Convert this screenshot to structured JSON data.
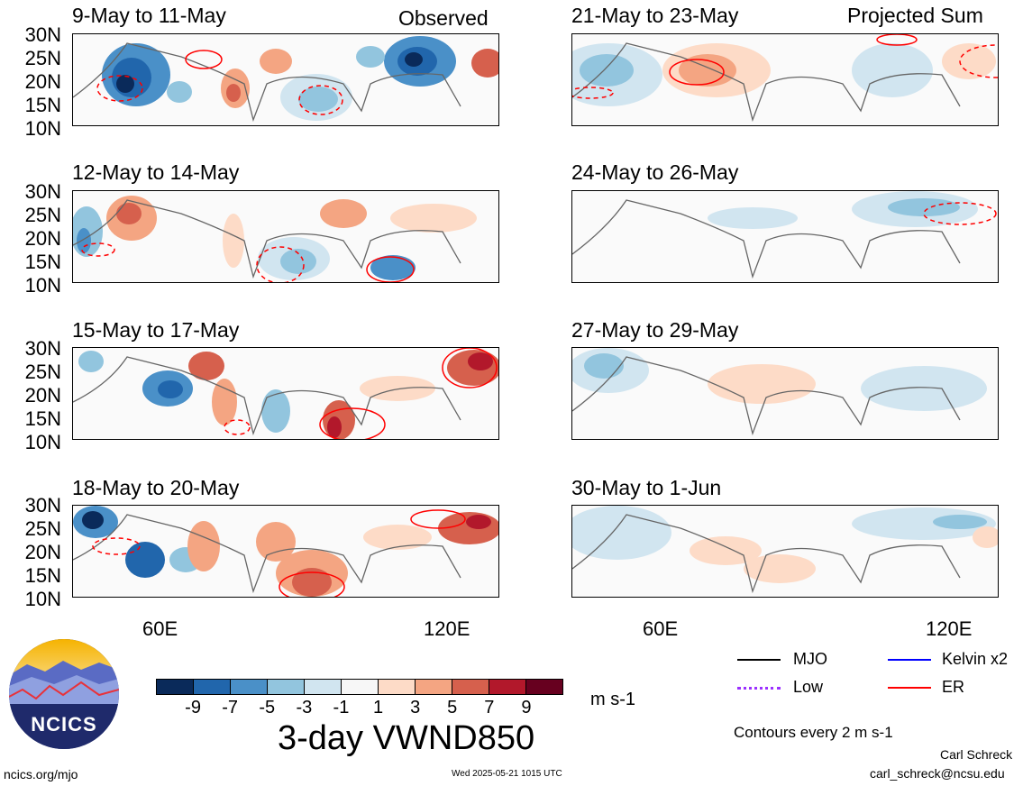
{
  "left_tag": "Observed",
  "right_tag": "Projected Sum",
  "lat_labels": [
    "30N",
    "25N",
    "20N",
    "15N",
    "10N"
  ],
  "lon_labels": [
    "60E",
    "120E"
  ],
  "left_panels": [
    {
      "title": "9-May to 11-May"
    },
    {
      "title": "12-May to 14-May"
    },
    {
      "title": "15-May to 17-May"
    },
    {
      "title": "18-May to 20-May"
    }
  ],
  "right_panels": [
    {
      "title": "21-May to 23-May"
    },
    {
      "title": "24-May to 26-May"
    },
    {
      "title": "27-May to 29-May"
    },
    {
      "title": "30-May to 1-Jun"
    }
  ],
  "colorbar": {
    "colors": [
      "#0a2a5a",
      "#2166ac",
      "#4a90c8",
      "#92c5de",
      "#d1e5f0",
      "#f7f7f7",
      "#fddbc7",
      "#f4a582",
      "#d6604d",
      "#b2182b",
      "#67001f"
    ],
    "labels": [
      "-9",
      "-7",
      "-5",
      "-3",
      "-1",
      "1",
      "3",
      "5",
      "7",
      "9"
    ],
    "units": "m s-1"
  },
  "main_title": "3-day VWND850",
  "legend": [
    {
      "label": "MJO",
      "color": "#000000"
    },
    {
      "label": "Kelvin x2",
      "color": "#0000ff"
    },
    {
      "label": "Low",
      "color": "#9b30ff"
    },
    {
      "label": "ER",
      "color": "#ff0000"
    }
  ],
  "contours_note": "Contours every 2 m s-1",
  "logo_text": "NCICS",
  "footer": {
    "left": "ncics.org/mjo",
    "center": "Wed 2025-05-21 1015 UTC",
    "author": "Carl Schreck",
    "email": "carl_schreck@ncsu.edu"
  }
}
